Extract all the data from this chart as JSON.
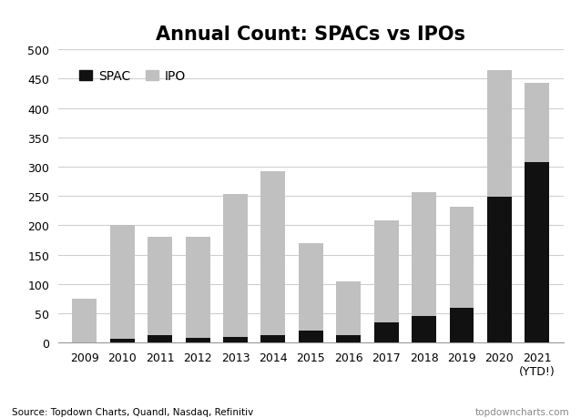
{
  "title": "Annual Count: SPACs vs IPOs",
  "years": [
    "2009",
    "2010",
    "2011",
    "2012",
    "2013",
    "2014",
    "2015",
    "2016",
    "2017",
    "2018",
    "2019",
    "2020",
    "2021\n(YTD!)"
  ],
  "spac_values": [
    0,
    7,
    13,
    8,
    10,
    12,
    20,
    13,
    34,
    46,
    59,
    248,
    308
  ],
  "ipo_values": [
    75,
    193,
    167,
    172,
    243,
    280,
    150,
    92,
    175,
    210,
    172,
    217,
    135
  ],
  "spac_color": "#111111",
  "ipo_color": "#c0c0c0",
  "ylim": [
    0,
    500
  ],
  "yticks": [
    0,
    50,
    100,
    150,
    200,
    250,
    300,
    350,
    400,
    450,
    500
  ],
  "ylabel": "",
  "xlabel": "",
  "source_text": "Source: Topdown Charts, Quandl, Nasdaq, Refinitiv",
  "watermark_text": "topdowncharts.com",
  "legend_spac": "SPAC",
  "legend_ipo": "IPO",
  "background_color": "#ffffff",
  "grid_color": "#d0d0d0"
}
